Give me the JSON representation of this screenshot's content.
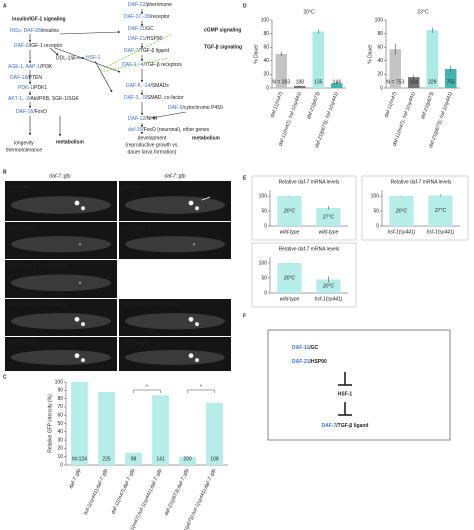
{
  "panel_labels": [
    "A",
    "B",
    "C",
    "D",
    "E",
    "F"
  ],
  "panel_a": {
    "nodes": [
      {
        "gene": "DAF-22",
        "role": "/pheromone"
      },
      {
        "gene": "DAF-37,-38",
        "role": "/receptor"
      },
      {
        "gene": "DAF-11",
        "role": "/GC"
      },
      {
        "gene": "DAF-21",
        "role": "/HSP90"
      },
      {
        "gene": "DAF-7",
        "role": "/TGF-β ligand"
      },
      {
        "gene": "DAF-1, -4",
        "role": "/TGF-β receptors"
      },
      {
        "gene": "DAF-8, -14",
        "role": "/SMADs"
      },
      {
        "gene": "DAF-3, -5",
        "role": "/SMAD, co-factor"
      },
      {
        "gene": "DAF-9",
        "role": "/cytochrome P450"
      },
      {
        "gene": "DAF-12",
        "role": "/NHR"
      },
      {
        "gene": "INSs, DAF-28",
        "role": "/insulins"
      },
      {
        "gene": "DAF-2",
        "role": "/IGF-1 receptor"
      },
      {
        "gene": "AGE-1, AAP-1",
        "role": "/PI3K"
      },
      {
        "gene": "DAF-18",
        "role": "/PTEN"
      },
      {
        "gene": "PDK-1",
        "role": "/PDK1"
      },
      {
        "gene": "AKT-1, -2",
        "role": "/Akt/PKB, SGK-1/SGK"
      },
      {
        "gene": "DAF-16",
        "role": "/FoxO"
      },
      {
        "gene": "HSF-1",
        "role": ""
      },
      {
        "gene": "daf-16",
        "role": "/FoxO (neuronal), other genes"
      }
    ],
    "plain_labels": [
      "DDL-1/2"
    ],
    "pathways": [
      "insulin/IGF-1 signaling",
      "cGMP signaling",
      "TGF-β signaling"
    ],
    "outputs_red": [
      "metabolism",
      "metabolism"
    ],
    "outputs_orange": [
      "longevity",
      "thermotolerance"
    ],
    "development": [
      "development",
      "(reproductive growth vs.",
      "dauer larva formation)"
    ]
  },
  "panel_b": {
    "headers": [
      "daf-7::gfp",
      "daf-7::gfp"
    ],
    "images": [
      "wild-type",
      "wild-type",
      "daf-11(m47)",
      "daf-21(p673)",
      "daf-11(m47); hsf-1(ok600)",
      "daf-11(m47); hsf-1(sy441)",
      "daf-21(p673); hsf-1(sy441)",
      "hsf-1(sy441)",
      "hsf-1(sy441)"
    ],
    "annotation": "ASIs"
  },
  "panel_f": {
    "inputs": [
      {
        "gene": "DAF-11",
        "role": "/GC"
      },
      {
        "gene": "DAF-21",
        "role": "/HSP90"
      }
    ],
    "mediator": "HSF-1",
    "output": {
      "gene": "DAF-7",
      "role": "/TGF-β ligand"
    }
  },
  "chart_data": [
    {
      "type": "bar",
      "ylabel": "Relative GFP intensity (%)",
      "categories": [
        "daf-7::gfp",
        "hsf-1(sy441);daf-7::gfp",
        "daf-11(m47);daf-7::gfp",
        "daf-11(m47);hsf-1(sy441);daf-7::gfp",
        "daf-21(p673);daf-7::gfp",
        "daf-21(p673);hsf-1(sy441);daf-7::gfp"
      ],
      "values": [
        100,
        88,
        15,
        84,
        10,
        75
      ],
      "colors": [
        "#b5eee8",
        "#b5eee8",
        "#b5eee8",
        "#b5eee8",
        "#b5eee8",
        "#b5eee8"
      ],
      "n_labels": [
        "N=124",
        "225",
        "98",
        "141",
        "200",
        "108"
      ],
      "annotations": [
        "*",
        "*"
      ],
      "ylim": [
        0,
        100
      ],
      "yticks": [
        0,
        10,
        20,
        30,
        40,
        50,
        60,
        70,
        80,
        90,
        100
      ]
    },
    {
      "type": "bar",
      "title": "20°C",
      "ylabel": "% Dauer",
      "categories": [
        "daf-11(m47)",
        "daf-11(m47); hsf-1(sy441)",
        "daf-21(p673)",
        "daf-21(p673); hsf-1(sy441)"
      ],
      "values": [
        50,
        3,
        83,
        7
      ],
      "errors": [
        3,
        1,
        3,
        2
      ],
      "colors": [
        "#c4c4c4",
        "#747474",
        "#a8ece4",
        "#3fb7b0"
      ],
      "n_labels": [
        "N = 263",
        "188",
        "135",
        "144"
      ],
      "ylim": [
        0,
        100
      ],
      "yticks": [
        0,
        20,
        40,
        60,
        80,
        100
      ]
    },
    {
      "type": "bar",
      "title": "23°C",
      "ylabel": "% Dauer",
      "categories": [
        "daf-11(m47)",
        "daf-11(m47); hsf-1(sy441)",
        "daf-21(p673)",
        "daf-21(p673); hsf-1(sy441)"
      ],
      "values": [
        57,
        16,
        85,
        28
      ],
      "errors": [
        8,
        3,
        4,
        5
      ],
      "colors": [
        "#c4c4c4",
        "#747474",
        "#a8ece4",
        "#3fb7b0"
      ],
      "n_labels": [
        "N = 753",
        "104",
        "329",
        "755"
      ],
      "ylim": [
        0,
        100
      ],
      "yticks": [
        0,
        20,
        40,
        60,
        80,
        100
      ]
    },
    {
      "type": "bar",
      "title": "Relative daf-7 mRNA levels",
      "categories": [
        "wild-type",
        "wild-type"
      ],
      "values": [
        100,
        60
      ],
      "errors": [
        1,
        5
      ],
      "colors": [
        "#b5eee8",
        "#b5eee8"
      ],
      "bar_labels": [
        "20°C",
        "27°C"
      ],
      "ylim": [
        0,
        120
      ],
      "yticks": [
        0,
        50,
        100
      ]
    },
    {
      "type": "bar",
      "title": "Relative daf-7 mRNA levels",
      "categories": [
        "hsf-1(sy441)",
        "hsf-1(sy441)"
      ],
      "values": [
        100,
        102
      ],
      "errors": [
        1,
        3
      ],
      "colors": [
        "#b5eee8",
        "#b5eee8"
      ],
      "bar_labels": [
        "20°C",
        "27°C"
      ],
      "ylim": [
        0,
        120
      ],
      "yticks": [
        0,
        50,
        100
      ]
    },
    {
      "type": "bar",
      "title": "Relative daf-7 mRNA levels",
      "categories": [
        "wild-type",
        "hsf-1(sy441)"
      ],
      "values": [
        100,
        45
      ],
      "errors": [
        1,
        10
      ],
      "colors": [
        "#b5eee8",
        "#b5eee8"
      ],
      "bar_labels": [
        "20°C",
        "20°C"
      ],
      "ylim": [
        0,
        120
      ],
      "yticks": [
        0,
        50,
        100
      ]
    }
  ]
}
